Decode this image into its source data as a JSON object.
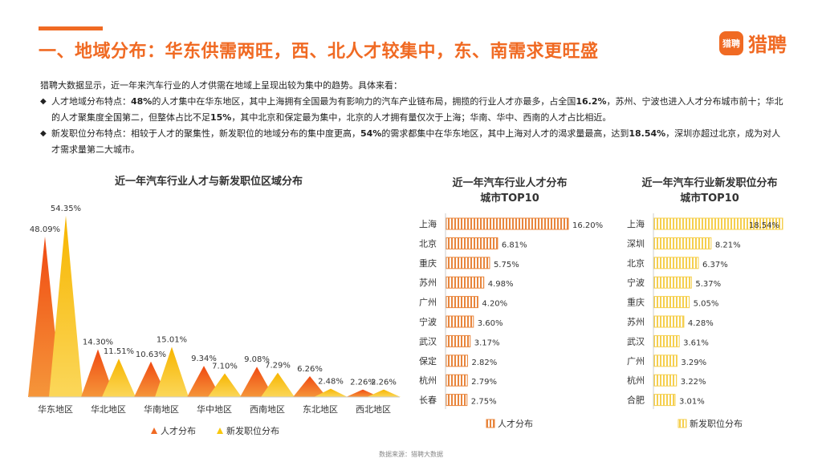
{
  "header": {
    "title": "一、地域分布：华东供需两旺，西、北人才较集中，东、南需求更旺盛",
    "logo_mark": "猎聘",
    "logo_text": "猎聘"
  },
  "intro": {
    "lead": "猎聘大数据显示，近一年来汽车行业的人才供需在地域上呈现出较为集中的趋势。具体来看：",
    "bullets": [
      {
        "diamond": "◆",
        "parts": [
          {
            "t": "人才地域分布特点：",
            "b": false
          },
          {
            "t": "48%",
            "b": true
          },
          {
            "t": "的人才集中在华东地区，其中上海拥有全国最为有影响力的汽车产业链布局，拥揽的行业人才亦最多，占全国",
            "b": false
          },
          {
            "t": "16.2%",
            "b": true
          },
          {
            "t": "，苏州、宁波也进入人才分布城市前十；华北的人才聚集度全国第二，但整体占比不足",
            "b": false
          },
          {
            "t": "15%",
            "b": true
          },
          {
            "t": "，其中北京和保定最为集中，北京的人才拥有量仅次于上海；华南、华中、西南的人才占比相近。",
            "b": false
          }
        ]
      },
      {
        "diamond": "◆",
        "parts": [
          {
            "t": "新发职位分布特点：相较于人才的聚集性，新发职位的地域分布的集中度更高，",
            "b": false
          },
          {
            "t": "54%",
            "b": true
          },
          {
            "t": "的需求都集中在华东地区，其中上海对人才的渴求量最高，达到",
            "b": false
          },
          {
            "t": "18.54%",
            "b": true
          },
          {
            "t": "，深圳亦超过北京，成为对人才需求量第二大城市。",
            "b": false
          }
        ]
      }
    ]
  },
  "source": "数据来源：猎聘大数据",
  "colors": {
    "accent": "#f06a23",
    "talent_region": "#f06a23",
    "jobs_region": "#f9c80e",
    "talent_city": "#e8853c",
    "jobs_city": "#f5cf4e"
  },
  "chart_data": [
    {
      "type": "bar",
      "title": "近一年汽车行业人才与新发职位区域分布",
      "categories": [
        "华东地区",
        "华北地区",
        "华南地区",
        "华中地区",
        "西南地区",
        "东北地区",
        "西北地区"
      ],
      "series": [
        {
          "name": "人才分布",
          "values": [
            48.09,
            14.3,
            10.63,
            9.34,
            9.08,
            6.26,
            2.26
          ],
          "labels": [
            "48.09%",
            "14.30%",
            "10.63%",
            "9.34%",
            "9.08%",
            "6.26%",
            "2.26%"
          ],
          "color": "#f06a23"
        },
        {
          "name": "新发职位分布",
          "values": [
            54.35,
            11.51,
            15.01,
            7.1,
            7.29,
            2.48,
            2.26
          ],
          "labels": [
            "54.35%",
            "11.51%",
            "15.01%",
            "7.10%",
            "7.29%",
            "2.48%",
            "2.26%"
          ],
          "color": "#f9c80e"
        }
      ],
      "ylim": [
        0,
        56
      ],
      "legend": "bottom"
    },
    {
      "type": "bar",
      "orientation": "horizontal",
      "title_lines": [
        "近一年汽车行业人才分布",
        "城市TOP10"
      ],
      "categories": [
        "上海",
        "北京",
        "重庆",
        "苏州",
        "广州",
        "宁波",
        "武汉",
        "保定",
        "杭州",
        "长春"
      ],
      "series": [
        {
          "name": "人才分布",
          "values": [
            16.2,
            6.81,
            5.75,
            4.98,
            4.2,
            3.6,
            3.17,
            2.82,
            2.79,
            2.75
          ],
          "labels": [
            "16.20%",
            "6.81%",
            "5.75%",
            "4.98%",
            "4.20%",
            "3.60%",
            "3.17%",
            "2.82%",
            "2.79%",
            "2.75%"
          ],
          "color": "#e8853c"
        }
      ],
      "xlim": [
        0,
        16.2
      ],
      "legend": "bottom"
    },
    {
      "type": "bar",
      "orientation": "horizontal",
      "title_lines": [
        "近一年汽车行业新发职位分布",
        "城市TOP10"
      ],
      "categories": [
        "上海",
        "深圳",
        "北京",
        "宁波",
        "重庆",
        "苏州",
        "武汉",
        "广州",
        "杭州",
        "合肥"
      ],
      "series": [
        {
          "name": "新发职位分布",
          "values": [
            18.54,
            8.21,
            6.37,
            5.37,
            5.05,
            4.28,
            3.61,
            3.29,
            3.22,
            3.01
          ],
          "labels": [
            "18.54%",
            "8.21%",
            "6.37%",
            "5.37%",
            "5.05%",
            "4.28%",
            "3.61%",
            "3.29%",
            "3.22%",
            "3.01%"
          ],
          "color": "#f5cf4e"
        }
      ],
      "xlim": [
        0,
        18.54
      ],
      "legend": "bottom"
    }
  ]
}
